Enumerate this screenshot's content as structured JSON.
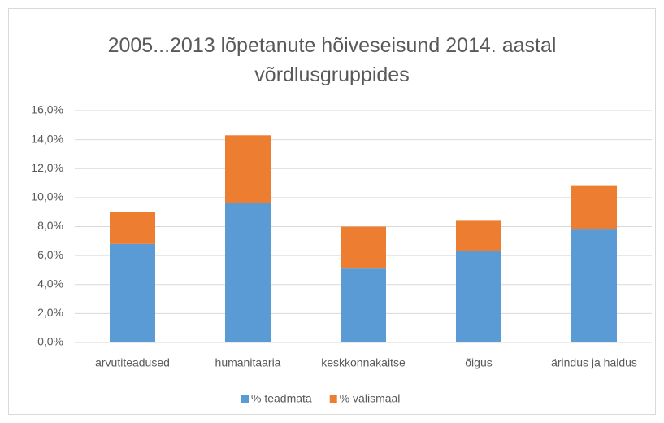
{
  "chart_data": {
    "type": "stacked_bar",
    "title": "2005...2013 lõpetanute hõiveseisund 2014. aastal võrdlusgruppides",
    "categories": [
      "arvutiteadused",
      "humanitaaria",
      "keskkonnakaitse",
      "õigus",
      "ärindus ja haldus"
    ],
    "series": [
      {
        "name": "% teadmata",
        "color": "#5b9bd5",
        "values": [
          6.8,
          9.6,
          5.1,
          6.3,
          7.8
        ]
      },
      {
        "name": "% välismaal",
        "color": "#ed7d31",
        "values": [
          2.2,
          4.7,
          2.9,
          2.1,
          3.0
        ]
      }
    ],
    "ylim": [
      0,
      16
    ],
    "yticks": [
      {
        "value": 0,
        "label": "0,0%"
      },
      {
        "value": 2,
        "label": "2,0%"
      },
      {
        "value": 4,
        "label": "4,0%"
      },
      {
        "value": 6,
        "label": "6,0%"
      },
      {
        "value": 8,
        "label": "8,0%"
      },
      {
        "value": 10,
        "label": "10,0%"
      },
      {
        "value": 12,
        "label": "12,0%"
      },
      {
        "value": 14,
        "label": "14,0%"
      },
      {
        "value": 16,
        "label": "16,0%"
      }
    ],
    "grid": true,
    "legend": "bottom"
  }
}
